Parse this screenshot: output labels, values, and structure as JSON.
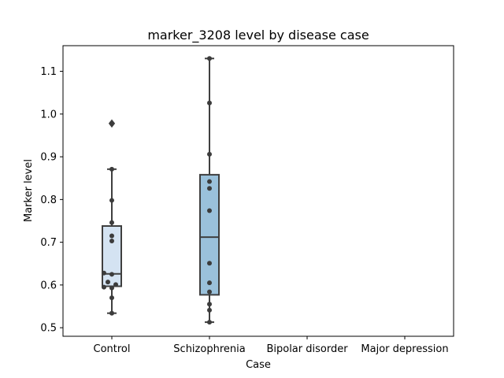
{
  "chart_data": {
    "type": "box",
    "title": "marker_3208 level by disease case",
    "xlabel": "Case",
    "ylabel": "Marker level",
    "categories": [
      "Control",
      "Schizophrenia",
      "Bipolar disorder",
      "Major depression"
    ],
    "ylim": [
      0.48,
      1.16
    ],
    "yticks": [
      0.5,
      0.6,
      0.7,
      0.8,
      0.9,
      1.0,
      1.1
    ],
    "ytick_labels": [
      "0.5",
      "0.6",
      "0.7",
      "0.8",
      "0.9",
      "1.0",
      "1.1"
    ],
    "grid": false,
    "colors": {
      "Control": "#d4e3f2",
      "Schizophrenia": "#9ac1db",
      "line": "#3f3f3f",
      "point": "#3c3c3c"
    },
    "boxes": [
      {
        "category": "Control",
        "q1": 0.597,
        "median": 0.626,
        "q3": 0.738,
        "whisker_low": 0.534,
        "whisker_high": 0.871,
        "outliers": [
          0.978
        ]
      },
      {
        "category": "Schizophrenia",
        "q1": 0.577,
        "median": 0.712,
        "q3": 0.858,
        "whisker_low": 0.513,
        "whisker_high": 1.13,
        "outliers": []
      }
    ],
    "points": [
      {
        "category": "Control",
        "values": [
          0.534,
          0.57,
          0.593,
          0.595,
          0.601,
          0.607,
          0.625,
          0.628,
          0.703,
          0.715,
          0.746,
          0.798,
          0.871,
          0.978
        ]
      },
      {
        "category": "Schizophrenia",
        "values": [
          0.513,
          0.541,
          0.555,
          0.584,
          0.605,
          0.651,
          0.774,
          0.826,
          0.842,
          0.906,
          1.026,
          1.13
        ]
      }
    ]
  }
}
